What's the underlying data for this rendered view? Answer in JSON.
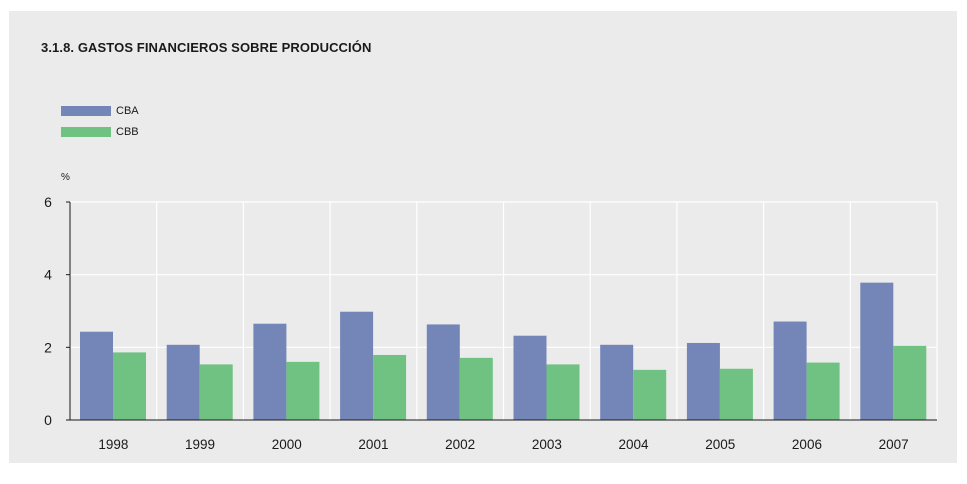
{
  "chart_data": {
    "type": "bar",
    "title": "3.1.8. GASTOS FINANCIEROS SOBRE PRODUCCIÓN",
    "ylabel": "%",
    "xlabel": "",
    "ylim": [
      0,
      6
    ],
    "yticks": [
      "0",
      "2",
      "4",
      "6"
    ],
    "categories": [
      "1998",
      "1999",
      "2000",
      "2001",
      "2002",
      "2003",
      "2004",
      "2005",
      "2006",
      "2007"
    ],
    "series": [
      {
        "name": "CBA",
        "color": "#7486b7",
        "values": [
          2.43,
          2.07,
          2.65,
          2.98,
          2.63,
          2.32,
          2.07,
          2.12,
          2.71,
          3.78
        ]
      },
      {
        "name": "CBB",
        "color": "#6fc281",
        "values": [
          1.86,
          1.53,
          1.6,
          1.79,
          1.71,
          1.53,
          1.38,
          1.41,
          1.58,
          2.04
        ]
      }
    ],
    "grid": "vertical-and-horizontal, white",
    "legend_position": "top-left"
  }
}
